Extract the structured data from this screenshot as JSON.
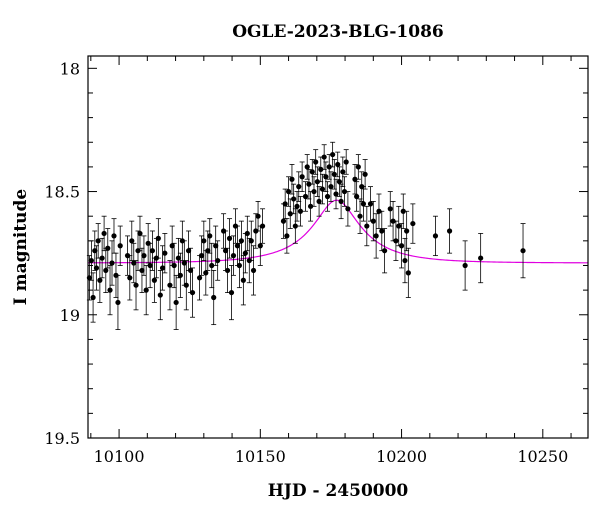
{
  "chart_data": {
    "type": "scatter",
    "title": "OGLE-2023-BLG-1086",
    "xlabel": "HJD - 2450000",
    "ylabel": "I magnitude",
    "xlim": [
      10089,
      10266
    ],
    "ylim": [
      19.5,
      17.95
    ],
    "y_inverted": true,
    "x_ticks": [
      10100,
      10150,
      10200,
      10250
    ],
    "x_tick_labels": [
      "10100",
      "10150",
      "10200",
      "10250"
    ],
    "y_ticks": [
      18,
      18.5,
      19,
      19.5
    ],
    "y_tick_labels": [
      "18",
      "18.5",
      "19",
      "19.5"
    ],
    "grid": false,
    "colors": {
      "data": "#000000",
      "model": "#e000e0"
    },
    "model": {
      "name": "",
      "t0": 10177,
      "tE": 22,
      "u0": 0.35,
      "baseline_mag": 18.79,
      "points": [
        [
          10089,
          18.78
        ],
        [
          10100,
          18.77
        ],
        [
          10110,
          18.765
        ],
        [
          10120,
          18.755
        ],
        [
          10130,
          18.74
        ],
        [
          10140,
          18.72
        ],
        [
          10150,
          18.68
        ],
        [
          10160,
          18.61
        ],
        [
          10170,
          18.55
        ],
        [
          10177,
          18.535
        ],
        [
          10185,
          18.55
        ],
        [
          10195,
          18.62
        ],
        [
          10205,
          18.68
        ],
        [
          10215,
          18.72
        ],
        [
          10230,
          18.755
        ],
        [
          10245,
          18.77
        ],
        [
          10266,
          18.78
        ]
      ]
    },
    "series": [
      {
        "name": "",
        "points": [
          [
            10089.5,
            18.85,
            0.09
          ],
          [
            10090.2,
            18.78,
            0.08
          ],
          [
            10090.8,
            18.93,
            0.1
          ],
          [
            10091.4,
            18.74,
            0.08
          ],
          [
            10092.0,
            18.81,
            0.09
          ],
          [
            10092.6,
            18.7,
            0.07
          ],
          [
            10093.2,
            18.86,
            0.09
          ],
          [
            10094.0,
            18.77,
            0.08
          ],
          [
            10094.7,
            18.67,
            0.07
          ],
          [
            10095.3,
            18.82,
            0.09
          ],
          [
            10096.0,
            18.73,
            0.08
          ],
          [
            10096.8,
            18.9,
            0.1
          ],
          [
            10097.5,
            18.79,
            0.09
          ],
          [
            10098.2,
            18.68,
            0.07
          ],
          [
            10098.9,
            18.84,
            0.09
          ],
          [
            10099.6,
            18.95,
            0.11
          ],
          [
            10100.4,
            18.72,
            0.08
          ],
          [
            10103.0,
            18.76,
            0.08
          ],
          [
            10103.8,
            18.85,
            0.09
          ],
          [
            10104.5,
            18.7,
            0.08
          ],
          [
            10105.2,
            18.79,
            0.08
          ],
          [
            10106.0,
            18.88,
            0.1
          ],
          [
            10106.7,
            18.74,
            0.08
          ],
          [
            10107.4,
            18.67,
            0.07
          ],
          [
            10108.1,
            18.82,
            0.09
          ],
          [
            10108.8,
            18.76,
            0.08
          ],
          [
            10109.6,
            18.9,
            0.1
          ],
          [
            10110.3,
            18.71,
            0.08
          ],
          [
            10111.0,
            18.8,
            0.09
          ],
          [
            10111.8,
            18.74,
            0.08
          ],
          [
            10112.5,
            18.86,
            0.09
          ],
          [
            10113.2,
            18.77,
            0.08
          ],
          [
            10113.9,
            18.69,
            0.08
          ],
          [
            10114.6,
            18.92,
            0.1
          ],
          [
            10115.4,
            18.81,
            0.09
          ],
          [
            10116.2,
            18.75,
            0.08
          ],
          [
            10118.0,
            18.88,
            0.1
          ],
          [
            10118.8,
            18.72,
            0.08
          ],
          [
            10119.5,
            18.8,
            0.09
          ],
          [
            10120.2,
            18.95,
            0.11
          ],
          [
            10121.0,
            18.77,
            0.08
          ],
          [
            10121.7,
            18.84,
            0.09
          ],
          [
            10122.4,
            18.7,
            0.08
          ],
          [
            10123.1,
            18.79,
            0.09
          ],
          [
            10123.8,
            18.88,
            0.1
          ],
          [
            10124.6,
            18.74,
            0.08
          ],
          [
            10125.3,
            18.82,
            0.09
          ],
          [
            10126.0,
            18.91,
            0.1
          ],
          [
            10128.5,
            18.85,
            0.09
          ],
          [
            10129.2,
            18.76,
            0.08
          ],
          [
            10130.0,
            18.7,
            0.08
          ],
          [
            10130.7,
            18.83,
            0.09
          ],
          [
            10131.4,
            18.74,
            0.08
          ],
          [
            10132.1,
            18.68,
            0.07
          ],
          [
            10132.8,
            18.8,
            0.09
          ],
          [
            10133.5,
            18.93,
            0.11
          ],
          [
            10134.2,
            18.72,
            0.08
          ],
          [
            10134.9,
            18.78,
            0.08
          ],
          [
            10137.0,
            18.66,
            0.07
          ],
          [
            10137.7,
            18.74,
            0.08
          ],
          [
            10138.4,
            18.82,
            0.09
          ],
          [
            10139.1,
            18.69,
            0.08
          ],
          [
            10139.8,
            18.91,
            0.11
          ],
          [
            10140.5,
            18.76,
            0.08
          ],
          [
            10141.2,
            18.64,
            0.07
          ],
          [
            10141.9,
            18.72,
            0.08
          ],
          [
            10142.6,
            18.8,
            0.09
          ],
          [
            10143.3,
            18.7,
            0.08
          ],
          [
            10144.0,
            18.86,
            0.1
          ],
          [
            10144.7,
            18.75,
            0.08
          ],
          [
            10145.4,
            18.67,
            0.07
          ],
          [
            10146.1,
            18.78,
            0.09
          ],
          [
            10146.8,
            18.7,
            0.08
          ],
          [
            10147.6,
            18.82,
            0.1
          ],
          [
            10148.4,
            18.66,
            0.07
          ],
          [
            10149.2,
            18.6,
            0.06
          ],
          [
            10150.0,
            18.72,
            0.08
          ],
          [
            10150.8,
            18.64,
            0.07
          ],
          [
            10158.2,
            18.62,
            0.07
          ],
          [
            10158.8,
            18.55,
            0.06
          ],
          [
            10159.4,
            18.68,
            0.07
          ],
          [
            10160.0,
            18.5,
            0.06
          ],
          [
            10160.6,
            18.59,
            0.06
          ],
          [
            10161.2,
            18.45,
            0.06
          ],
          [
            10161.8,
            18.53,
            0.06
          ],
          [
            10162.4,
            18.64,
            0.07
          ],
          [
            10163.0,
            18.56,
            0.06
          ],
          [
            10163.6,
            18.48,
            0.06
          ],
          [
            10164.2,
            18.58,
            0.06
          ],
          [
            10164.8,
            18.44,
            0.06
          ],
          [
            10166.0,
            18.52,
            0.06
          ],
          [
            10166.6,
            18.4,
            0.05
          ],
          [
            10167.2,
            18.47,
            0.06
          ],
          [
            10167.8,
            18.56,
            0.06
          ],
          [
            10168.4,
            18.42,
            0.05
          ],
          [
            10169.0,
            18.5,
            0.06
          ],
          [
            10169.6,
            18.38,
            0.05
          ],
          [
            10170.2,
            18.46,
            0.06
          ],
          [
            10170.8,
            18.54,
            0.06
          ],
          [
            10171.4,
            18.41,
            0.05
          ],
          [
            10172.0,
            18.49,
            0.06
          ],
          [
            10172.6,
            18.36,
            0.05
          ],
          [
            10173.2,
            18.44,
            0.06
          ],
          [
            10173.8,
            18.52,
            0.06
          ],
          [
            10174.4,
            18.4,
            0.05
          ],
          [
            10175.0,
            18.48,
            0.06
          ],
          [
            10175.6,
            18.35,
            0.05
          ],
          [
            10176.2,
            18.43,
            0.06
          ],
          [
            10176.8,
            18.51,
            0.06
          ],
          [
            10177.4,
            18.39,
            0.05
          ],
          [
            10178.0,
            18.46,
            0.06
          ],
          [
            10178.6,
            18.54,
            0.07
          ],
          [
            10179.2,
            18.42,
            0.06
          ],
          [
            10179.8,
            18.5,
            0.06
          ],
          [
            10180.4,
            18.38,
            0.05
          ],
          [
            10181.0,
            18.57,
            0.07
          ],
          [
            10183.5,
            18.45,
            0.06
          ],
          [
            10184.1,
            18.52,
            0.06
          ],
          [
            10184.7,
            18.4,
            0.05
          ],
          [
            10185.3,
            18.6,
            0.07
          ],
          [
            10185.9,
            18.48,
            0.06
          ],
          [
            10186.5,
            18.55,
            0.07
          ],
          [
            10187.1,
            18.43,
            0.06
          ],
          [
            10187.7,
            18.64,
            0.08
          ],
          [
            10189.0,
            18.55,
            0.07
          ],
          [
            10190.0,
            18.62,
            0.08
          ],
          [
            10191.0,
            18.68,
            0.09
          ],
          [
            10192.0,
            18.58,
            0.07
          ],
          [
            10193.0,
            18.66,
            0.08
          ],
          [
            10194.0,
            18.74,
            0.09
          ],
          [
            10196.0,
            18.57,
            0.07
          ],
          [
            10197.0,
            18.62,
            0.08
          ],
          [
            10198.0,
            18.7,
            0.08
          ],
          [
            10199.0,
            18.64,
            0.08
          ],
          [
            10200.0,
            18.72,
            0.09
          ],
          [
            10200.6,
            18.58,
            0.07
          ],
          [
            10201.2,
            18.78,
            0.09
          ],
          [
            10201.8,
            18.66,
            0.08
          ],
          [
            10202.4,
            18.83,
            0.1
          ],
          [
            10204.0,
            18.63,
            0.08
          ],
          [
            10212.0,
            18.68,
            0.08
          ],
          [
            10217.0,
            18.66,
            0.09
          ],
          [
            10222.5,
            18.8,
            0.1
          ],
          [
            10228.0,
            18.77,
            0.1
          ],
          [
            10243.0,
            18.74,
            0.11
          ]
        ]
      }
    ]
  }
}
